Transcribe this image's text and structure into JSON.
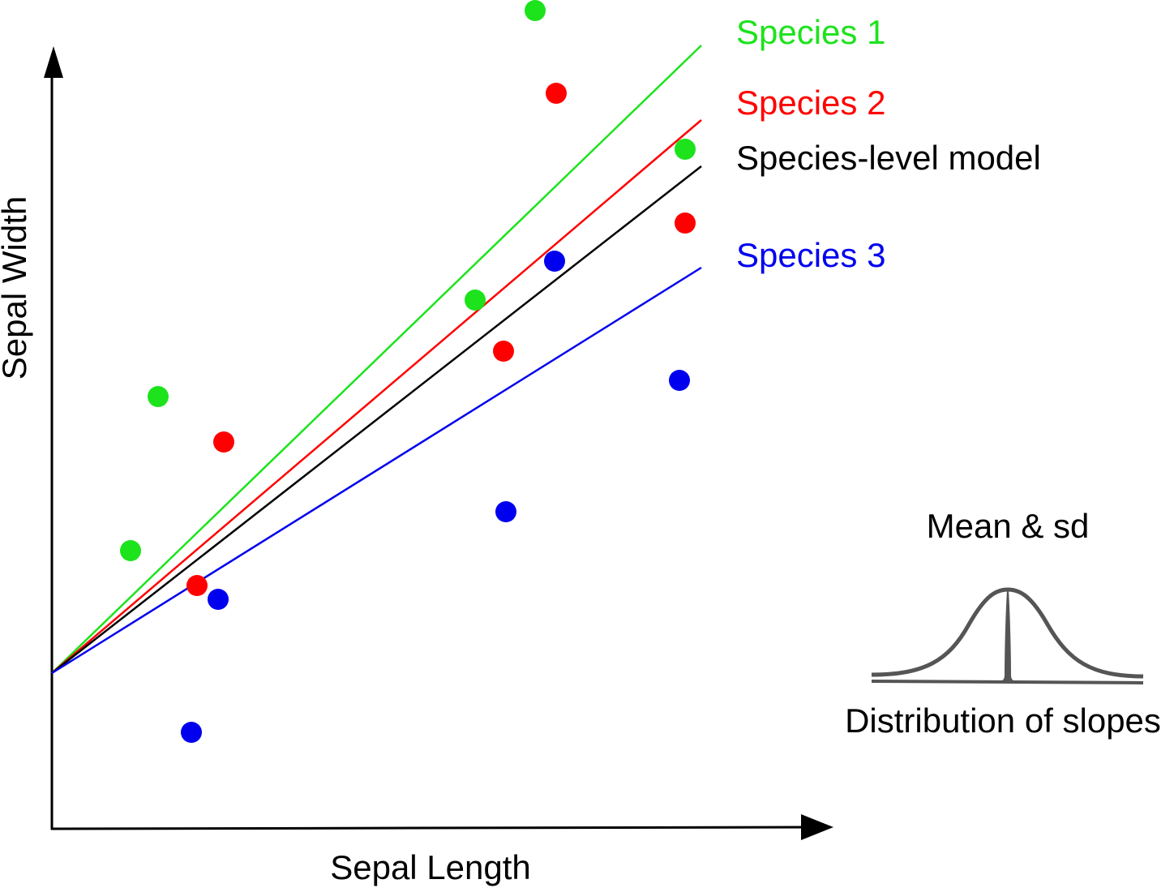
{
  "axes": {
    "x_label": "Sepal Length",
    "y_label": "Sepal Width"
  },
  "legend_labels": [
    {
      "key": "species1",
      "text": "Species 1",
      "color": "#1ce31c"
    },
    {
      "key": "species2",
      "text": "Species 2",
      "color": "#ff0000"
    },
    {
      "key": "species_level",
      "text": "Species-level model",
      "color": "#000000"
    },
    {
      "key": "species3",
      "text": "Species 3",
      "color": "#0000ee"
    }
  ],
  "inset": {
    "top_label": "Mean & sd",
    "bottom_label": "Distribution of slopes",
    "curve_color": "#555555"
  }
}
